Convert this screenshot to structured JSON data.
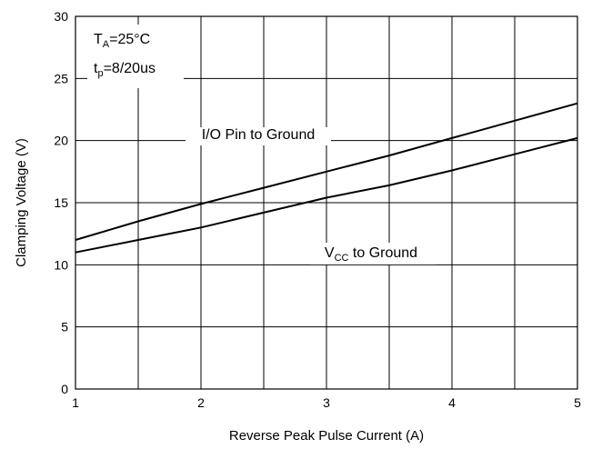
{
  "chart_data": {
    "type": "line",
    "xlabel": "Reverse Peak Pulse Current (A)",
    "ylabel": "Clamping Voltage (V)",
    "xlim": [
      1,
      5
    ],
    "ylim": [
      0,
      30
    ],
    "x_ticks": [
      1,
      1.5,
      2,
      2.5,
      3,
      3.5,
      4,
      4.5,
      5
    ],
    "x_tick_labels": [
      "1",
      "",
      "2",
      "",
      "3",
      "",
      "4",
      "",
      "5"
    ],
    "y_ticks": [
      0,
      5,
      10,
      15,
      20,
      25,
      30
    ],
    "y_tick_labels": [
      "0",
      "5",
      "10",
      "15",
      "20",
      "25",
      "30"
    ],
    "grid": true,
    "series": [
      {
        "name": "I/O Pin to Ground",
        "x": [
          1,
          1.5,
          2,
          2.5,
          3,
          3.5,
          4,
          4.5,
          5
        ],
        "y": [
          12.0,
          13.5,
          14.9,
          16.2,
          17.5,
          18.8,
          20.2,
          21.6,
          23.0
        ]
      },
      {
        "name": "VCC to Ground",
        "x": [
          1,
          1.5,
          2,
          2.5,
          3,
          3.5,
          4,
          4.5,
          5
        ],
        "y": [
          11.0,
          12.0,
          13.0,
          14.2,
          15.4,
          16.4,
          17.6,
          18.9,
          20.2
        ]
      }
    ],
    "annotations": {
      "conditions": {
        "ta_main": "T",
        "ta_sub": "A",
        "ta_rest": "=25°C",
        "tp_main": "t",
        "tp_sub": "p",
        "tp_rest": "=8/20us"
      },
      "io_label": "I/O Pin to Ground",
      "vcc_main": "V",
      "vcc_sub": "CC",
      "vcc_rest": " to Ground"
    }
  }
}
